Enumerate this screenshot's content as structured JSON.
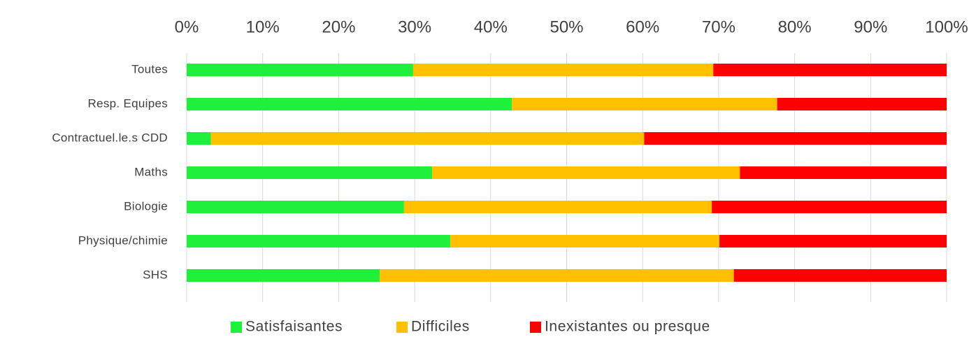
{
  "chart_data": {
    "type": "bar",
    "orientation": "horizontal",
    "stacked": true,
    "categories": [
      "Toutes",
      "Resp. Equipes",
      "Contractuel.le.s CDD",
      "Maths",
      "Biologie",
      "Physique/chimie",
      "SHS"
    ],
    "series": [
      {
        "name": "Satisfaisantes",
        "color": "#1ef03c",
        "values": [
          29.8,
          42.8,
          3.2,
          32.3,
          28.6,
          34.7,
          25.4
        ]
      },
      {
        "name": "Difficiles",
        "color": "#ffc000",
        "values": [
          39.5,
          34.9,
          57.0,
          40.5,
          40.5,
          35.4,
          46.6
        ]
      },
      {
        "name": "Inexistantes ou presque",
        "color": "#ff0000",
        "values": [
          30.7,
          22.3,
          39.8,
          27.2,
          30.9,
          29.9,
          28.0
        ]
      }
    ],
    "xlim": [
      0,
      100
    ],
    "xticks": [
      {
        "value": 0,
        "label": "0%"
      },
      {
        "value": 10,
        "label": "10%"
      },
      {
        "value": 20,
        "label": "20%"
      },
      {
        "value": 30,
        "label": "30%"
      },
      {
        "value": 40,
        "label": "40%"
      },
      {
        "value": 50,
        "label": "50%"
      },
      {
        "value": 60,
        "label": "60%"
      },
      {
        "value": 70,
        "label": "70%"
      },
      {
        "value": 80,
        "label": "80%"
      },
      {
        "value": 90,
        "label": "90%"
      },
      {
        "value": 100,
        "label": "100%"
      }
    ],
    "grid": true,
    "legend": "bottom"
  }
}
